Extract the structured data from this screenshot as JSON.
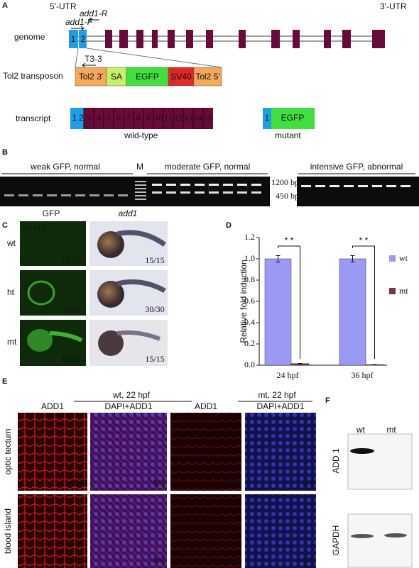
{
  "figure": {
    "A": {
      "label": "A",
      "utr5": "5'-UTR",
      "utr3": "3'-UTR",
      "genome": "genome",
      "primer_f": "add1-F",
      "primer_r": "add1-R",
      "transposon": "Tol2 transposon",
      "primer_t": "T3-3",
      "transposon_parts": [
        "Tol2 3'",
        "SA",
        "EGFP",
        "SV40",
        "Tol2 5'"
      ],
      "transcript": "transcript",
      "exons": [
        "1",
        "2",
        "3",
        "4",
        "5",
        "6",
        "7",
        "8",
        "9",
        "10",
        "11",
        "12",
        "13",
        "14",
        "15"
      ],
      "wild_type": "wild-type",
      "mutant_parts": [
        "1",
        "EGFP"
      ],
      "mutant": "mutant"
    },
    "B": {
      "label": "B",
      "groups": [
        "weak GFP, normal",
        "M",
        "moderate GFP, normal",
        "intensive GFP, abnormal"
      ],
      "sizes": [
        "1200 bp",
        "450 bp"
      ]
    },
    "C": {
      "label": "C",
      "columns": [
        "GFP",
        "add1"
      ],
      "stage": "24 hpf",
      "rows": [
        "wt",
        "ht",
        "mt"
      ],
      "counts": [
        [
          "15/15",
          "15/15"
        ],
        [
          "31/31",
          "30/30"
        ],
        [
          "15/15",
          "15/15"
        ]
      ]
    },
    "D": {
      "label": "D"
    },
    "E": {
      "label": "E",
      "conditions": [
        "wt, 22 hpf",
        "mt, 22 hpf"
      ],
      "columns": [
        "ADD1",
        "DAPI+ADD1",
        "ADD1",
        "DAPI+ADD1"
      ],
      "rows": [
        "optic tectum",
        "blood island"
      ],
      "count": "6/6"
    },
    "F": {
      "label": "F",
      "lanes": [
        "wt",
        "mt"
      ],
      "proteins": [
        "ADD 1",
        "GAPDH"
      ]
    }
  },
  "chart_data": {
    "type": "bar",
    "ylabel": "Relative fold induction",
    "categories": [
      "24 hpf",
      "36 hpf"
    ],
    "series": [
      {
        "name": "wt",
        "color": "#9a9af5",
        "values": [
          1.0,
          1.0
        ],
        "errors": [
          0.03,
          0.03
        ]
      },
      {
        "name": "mt",
        "color": "#7a3346",
        "values": [
          0.015,
          0.006
        ],
        "errors": [
          0.002,
          0.001
        ]
      }
    ],
    "ylim": [
      0,
      1.2
    ],
    "yticks": [
      {
        "value": 0,
        "label": "0.0"
      },
      0.2,
      0.4,
      0.6,
      0.8,
      {
        "value": 1,
        "label": "1.0"
      },
      1.2
    ],
    "annotations": [
      "* *",
      "* *"
    ]
  }
}
